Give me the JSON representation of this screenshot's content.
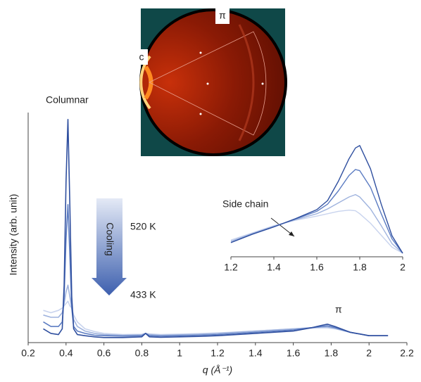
{
  "chart_data": [
    {
      "type": "line",
      "y_label": "Intensity (arb. unit)",
      "x_label": "q (Å⁻¹)",
      "annotations": [
        "Columnar",
        "Cooling",
        "520 K",
        "433 K",
        "π"
      ],
      "x": [
        0.28,
        0.32,
        0.36,
        0.38,
        0.39,
        0.4,
        0.41,
        0.42,
        0.43,
        0.44,
        0.46,
        0.5,
        0.55,
        0.6,
        0.7,
        0.8,
        0.82,
        0.84,
        0.9,
        1.0,
        1.1,
        1.2,
        1.4,
        1.6,
        1.7,
        1.75,
        1.78,
        1.82,
        1.9,
        2.0,
        2.1
      ],
      "xlim": [
        0.2,
        2.2
      ],
      "xticks": [
        0.2,
        0.4,
        0.6,
        0.8,
        1,
        1.2,
        1.4,
        1.6,
        1.8,
        2,
        2.2
      ],
      "ylim": [
        0,
        100
      ],
      "series": [
        {
          "color": "#2f4f9f",
          "values": [
            6,
            4,
            3.5,
            6,
            25,
            70,
            97,
            60,
            20,
            6,
            3.5,
            3,
            2.5,
            2.2,
            2.2,
            2.5,
            4,
            2.5,
            2.3,
            2.5,
            2.7,
            3,
            4,
            5,
            6.5,
            7.5,
            8,
            7,
            4.5,
            3,
            3
          ]
        },
        {
          "color": "#5c7cc2",
          "values": [
            9,
            7,
            7,
            9,
            20,
            45,
            60,
            38,
            15,
            7,
            5,
            4,
            3.2,
            3,
            2.8,
            3,
            4,
            3,
            2.8,
            3,
            3.2,
            3.5,
            4.5,
            5.5,
            6.5,
            7,
            7.3,
            6.5,
            4.5,
            3,
            3
          ]
        },
        {
          "color": "#9fb3de",
          "values": [
            12,
            11,
            11,
            13,
            17,
            22,
            25,
            20,
            15,
            10,
            7,
            5,
            4,
            3.5,
            3.2,
            3.4,
            4,
            3.5,
            3.2,
            3.4,
            3.6,
            4,
            5,
            6,
            6.5,
            6.8,
            6.8,
            6.2,
            4.5,
            3,
            3
          ]
        },
        {
          "color": "#c9d4ee",
          "values": [
            14,
            13,
            14,
            15,
            16,
            17,
            18,
            16,
            15,
            12,
            9,
            6,
            4.8,
            4,
            3.5,
            3.6,
            4,
            3.8,
            3.5,
            3.7,
            3.9,
            4.2,
            5,
            6,
            6.3,
            6.4,
            6.4,
            6,
            4.5,
            3,
            3
          ]
        }
      ]
    },
    {
      "type": "line",
      "annotations": [
        "Side chain"
      ],
      "x": [
        1.2,
        1.3,
        1.4,
        1.5,
        1.6,
        1.65,
        1.7,
        1.75,
        1.78,
        1.8,
        1.85,
        1.9,
        1.95,
        2.0
      ],
      "xlim": [
        1.2,
        2
      ],
      "xticks": [
        1.2,
        1.4,
        1.6,
        1.8,
        2
      ],
      "ylim": [
        0,
        100
      ],
      "series": [
        {
          "color": "#2f4f9f",
          "values": [
            11.8,
            18.8,
            25,
            31.8,
            39.4,
            47,
            63,
            82,
            91,
            93,
            73.5,
            44,
            17.6,
            3
          ]
        },
        {
          "color": "#5c7cc2",
          "values": [
            12,
            19,
            25,
            31.5,
            38,
            44,
            55,
            68,
            73,
            72,
            58,
            36,
            15,
            3
          ]
        },
        {
          "color": "#9fb3de",
          "values": [
            13,
            19.5,
            25.5,
            31,
            36,
            40,
            45,
            50,
            52,
            50,
            40,
            26,
            11,
            3
          ]
        },
        {
          "color": "#c9d4ee",
          "values": [
            14,
            20,
            26,
            30.5,
            34,
            36,
            38,
            39,
            38.5,
            36,
            28,
            18,
            8,
            3
          ]
        }
      ]
    }
  ],
  "detector_image": {
    "labels": [
      "c",
      "π"
    ]
  }
}
